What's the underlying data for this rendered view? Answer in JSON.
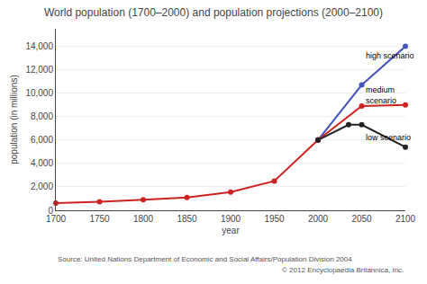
{
  "chart_data": {
    "type": "line",
    "title": "World population (1700–2000) and population projections (2000–2100)",
    "x_label": "year",
    "y_label": "population (in millions)",
    "source": "Source: United Nations Department of Economic and Social Affairs/Population Division 2004",
    "copyright": "© 2012 Encyclopaedia Britannica, Inc.",
    "series": [
      {
        "color": "#cc2222",
        "x": [
          1700,
          1750,
          1800,
          1850,
          1900,
          1950,
          2000
        ],
        "values": [
          610,
          720,
          900,
          1100,
          1550,
          2500,
          6000
        ]
      },
      {
        "color": "#4455bb",
        "x": [
          2000,
          2050,
          2100
        ],
        "values": [
          6000,
          10700,
          14000
        ]
      },
      {
        "color": "#cc2222",
        "x": [
          2000,
          2050,
          2100
        ],
        "values": [
          6000,
          8900,
          9000
        ]
      },
      {
        "color": "#222222",
        "x": [
          2000,
          2035,
          2050,
          2100
        ],
        "values": [
          6000,
          7300,
          7300,
          5400
        ]
      }
    ],
    "annotations": [
      {
        "text": "high scenario",
        "x": 2053,
        "y": 13200
      },
      {
        "text": "medium\nscenario",
        "x": 2053,
        "y": 9800
      },
      {
        "text": "low scenario",
        "x": 2053,
        "y": 6200
      }
    ],
    "marker": "circle",
    "grid": true,
    "xlim": [
      1700,
      2100
    ],
    "xticks": [
      1700,
      1750,
      1800,
      1850,
      1900,
      1950,
      2000,
      2050,
      2100
    ],
    "ylim": [
      0,
      15500
    ],
    "yticks": [
      0,
      {
        "value": 2000,
        "label": "2,000"
      },
      {
        "value": 4000,
        "label": "4,000"
      },
      {
        "value": 6000,
        "label": "6,000"
      },
      {
        "value": 8000,
        "label": "8,000"
      },
      {
        "value": 10000,
        "label": "10,000"
      },
      {
        "value": 12000,
        "label": "12,000"
      },
      {
        "value": 14000,
        "label": "14,000"
      }
    ]
  }
}
